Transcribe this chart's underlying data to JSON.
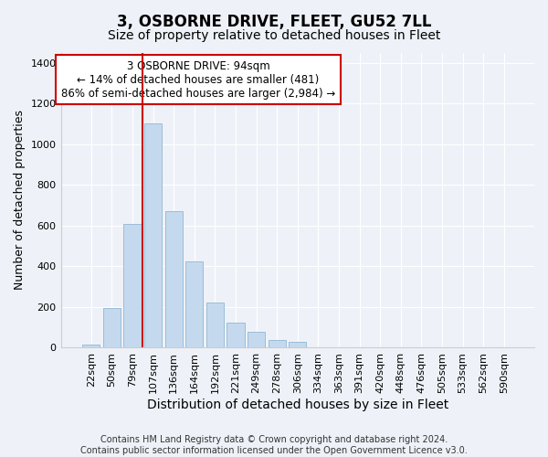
{
  "title": "3, OSBORNE DRIVE, FLEET, GU52 7LL",
  "subtitle": "Size of property relative to detached houses in Fleet",
  "xlabel": "Distribution of detached houses by size in Fleet",
  "ylabel": "Number of detached properties",
  "bar_labels": [
    "22sqm",
    "50sqm",
    "79sqm",
    "107sqm",
    "136sqm",
    "164sqm",
    "192sqm",
    "221sqm",
    "249sqm",
    "278sqm",
    "306sqm",
    "334sqm",
    "363sqm",
    "391sqm",
    "420sqm",
    "448sqm",
    "476sqm",
    "505sqm",
    "533sqm",
    "562sqm",
    "590sqm"
  ],
  "bar_values": [
    15,
    195,
    610,
    1100,
    670,
    425,
    220,
    125,
    80,
    40,
    28,
    0,
    0,
    0,
    0,
    0,
    0,
    0,
    0,
    0,
    0
  ],
  "bar_color": "#c5d9ee",
  "bar_edge_color": "#9bbdd6",
  "vline_x_index": 2.5,
  "vline_color": "#cc0000",
  "annotation_line1": "3 OSBORNE DRIVE: 94sqm",
  "annotation_line2": "← 14% of detached houses are smaller (481)",
  "annotation_line3": "86% of semi-detached houses are larger (2,984) →",
  "annotation_box_edgecolor": "#cc0000",
  "annotation_box_facecolor": "#ffffff",
  "ylim": [
    0,
    1450
  ],
  "yticks": [
    0,
    200,
    400,
    600,
    800,
    1000,
    1200,
    1400
  ],
  "footer_text": "Contains HM Land Registry data © Crown copyright and database right 2024.\nContains public sector information licensed under the Open Government Licence v3.0.",
  "background_color": "#eef2f8",
  "grid_color": "#ffffff",
  "title_fontsize": 12,
  "subtitle_fontsize": 10,
  "xlabel_fontsize": 10,
  "ylabel_fontsize": 9,
  "tick_fontsize": 8,
  "annotation_fontsize": 8.5,
  "footer_fontsize": 7
}
